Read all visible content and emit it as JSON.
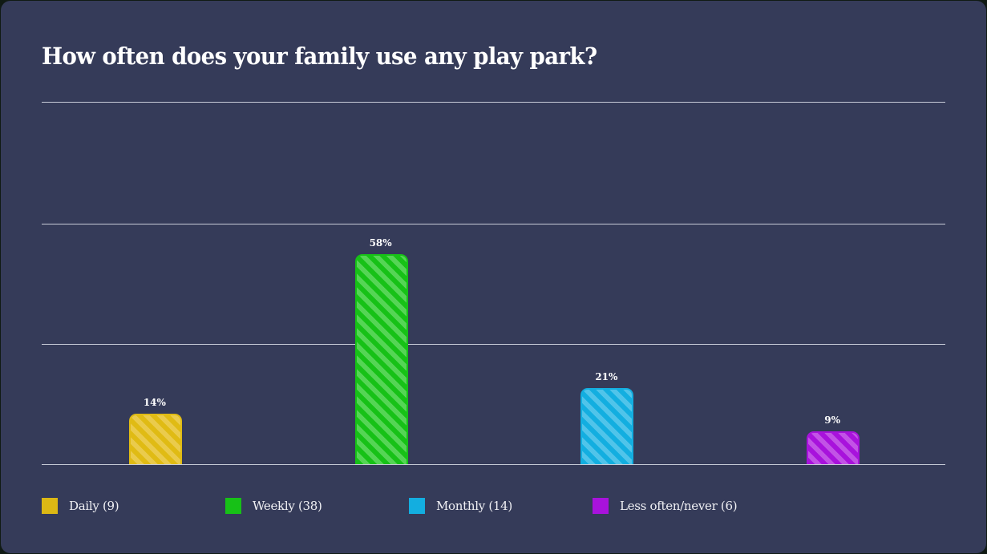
{
  "chart_data": {
    "type": "bar",
    "title": "How often does your family use any play park?",
    "categories": [
      "Daily",
      "Weekly",
      "Monthly",
      "Less often/never"
    ],
    "values": [
      14,
      58,
      21,
      9
    ],
    "counts": [
      9,
      38,
      14,
      6
    ],
    "value_labels": [
      "14%",
      "58%",
      "21%",
      "9%"
    ],
    "colors": [
      "#e0bb14",
      "#1ec41e",
      "#13aee0",
      "#a815e0"
    ],
    "xlabel": "",
    "ylabel": "",
    "ylim": [
      0,
      100
    ],
    "grid": true,
    "gridlines": [
      0,
      33.3,
      66.7,
      100
    ],
    "legend_position": "bottom",
    "legend": [
      "Daily (9)",
      "Weekly (38)",
      "Monthly (14)",
      "Less often/never (6)"
    ]
  },
  "header": {
    "title": "How often does your family use any play park?"
  },
  "bars": [
    {
      "label": "14%",
      "value": 14,
      "color": "#e0bb14",
      "border": "#e0bb14",
      "light": "#eacb4c"
    },
    {
      "label": "58%",
      "value": 58,
      "color": "#17c117",
      "border": "#17c117",
      "light": "#55d555"
    },
    {
      "label": "21%",
      "value": 21,
      "color": "#13aee0",
      "border": "#13aee0",
      "light": "#50c4ea"
    },
    {
      "label": "9%",
      "value": 9,
      "color": "#a812dc",
      "border": "#a812dc",
      "light": "#c253e6"
    }
  ],
  "legend": {
    "items": [
      {
        "label": "Daily (9)",
        "color": "#dcb814"
      },
      {
        "label": "Weekly (38)",
        "color": "#17c117"
      },
      {
        "label": "Monthly (14)",
        "color": "#13aee0"
      },
      {
        "label": "Less often/never (6)",
        "color": "#a812dc"
      }
    ]
  }
}
